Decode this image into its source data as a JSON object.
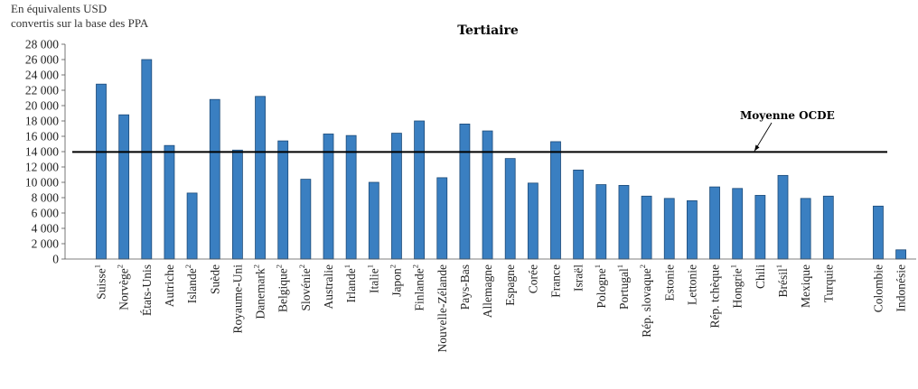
{
  "unit_label": [
    "En équivalents USD",
    "convertis sur la base des PPA"
  ],
  "chart_data": {
    "type": "bar",
    "title": "Tertiaire",
    "xlabel": "",
    "ylabel": "En équivalents USD convertis sur la base des PPA",
    "ylim": [
      0,
      28000
    ],
    "yticks": [
      0,
      2000,
      4000,
      6000,
      8000,
      10000,
      12000,
      14000,
      16000,
      18000,
      20000,
      22000,
      24000,
      26000,
      28000
    ],
    "ytick_labels": [
      "0",
      "2 000",
      "4 000",
      "6 000",
      "8 000",
      "10 000",
      "12 000",
      "14 000",
      "16 000",
      "18 000",
      "20 000",
      "22 000",
      "24 000",
      "26 000",
      "28 000"
    ],
    "grid": false,
    "bar_color": "#3a7fc1",
    "categories": [
      {
        "label": "Suisse",
        "note": "1",
        "value": 22800
      },
      {
        "label": "Norvège",
        "note": "2",
        "value": 18800
      },
      {
        "label": "États-Unis",
        "note": "",
        "value": 26000
      },
      {
        "label": "Autriche",
        "note": "",
        "value": 14800
      },
      {
        "label": "Islande",
        "note": "2",
        "value": 8600
      },
      {
        "label": "Suède",
        "note": "",
        "value": 20800
      },
      {
        "label": "Royaume-Uni",
        "note": "",
        "value": 14200
      },
      {
        "label": "Danemark",
        "note": "2",
        "value": 21200
      },
      {
        "label": "Belgique",
        "note": "2",
        "value": 15400
      },
      {
        "label": "Slovénie",
        "note": "2",
        "value": 10400
      },
      {
        "label": "Australie",
        "note": "",
        "value": 16300
      },
      {
        "label": "Irlande",
        "note": "1",
        "value": 16100
      },
      {
        "label": "Italie",
        "note": "1",
        "value": 10000
      },
      {
        "label": "Japon",
        "note": "2",
        "value": 16400
      },
      {
        "label": "Finlande",
        "note": "2",
        "value": 18000
      },
      {
        "label": "Nouvelle-Zélande",
        "note": "",
        "value": 10600
      },
      {
        "label": "Pays-Bas",
        "note": "",
        "value": 17600
      },
      {
        "label": "Allemagne",
        "note": "",
        "value": 16700
      },
      {
        "label": "Espagne",
        "note": "",
        "value": 13100
      },
      {
        "label": "Corée",
        "note": "",
        "value": 9900
      },
      {
        "label": "France",
        "note": "",
        "value": 15300
      },
      {
        "label": "Israël",
        "note": "",
        "value": 11600
      },
      {
        "label": "Pologne",
        "note": "1",
        "value": 9700
      },
      {
        "label": "Portugal",
        "note": "1",
        "value": 9600
      },
      {
        "label": "Rép. slovaque",
        "note": "2",
        "value": 8200
      },
      {
        "label": "Estonie",
        "note": "",
        "value": 7900
      },
      {
        "label": "Lettonie",
        "note": "",
        "value": 7600
      },
      {
        "label": "Rép. tchèque",
        "note": "",
        "value": 9400
      },
      {
        "label": "Hongrie",
        "note": "1",
        "value": 9200
      },
      {
        "label": "Chili",
        "note": "",
        "value": 8300
      },
      {
        "label": "Brésil",
        "note": "1",
        "value": 10900
      },
      {
        "label": "Mexique",
        "note": "",
        "value": 7900
      },
      {
        "label": "Turquie",
        "note": "",
        "value": 8200
      },
      {
        "label": "Colombie",
        "note": "",
        "value": 6900,
        "gap_before": true
      },
      {
        "label": "Indonésie",
        "note": "",
        "value": 1200
      }
    ],
    "reference_line": {
      "label": "Moyenne OCDE",
      "value": 13950
    }
  }
}
